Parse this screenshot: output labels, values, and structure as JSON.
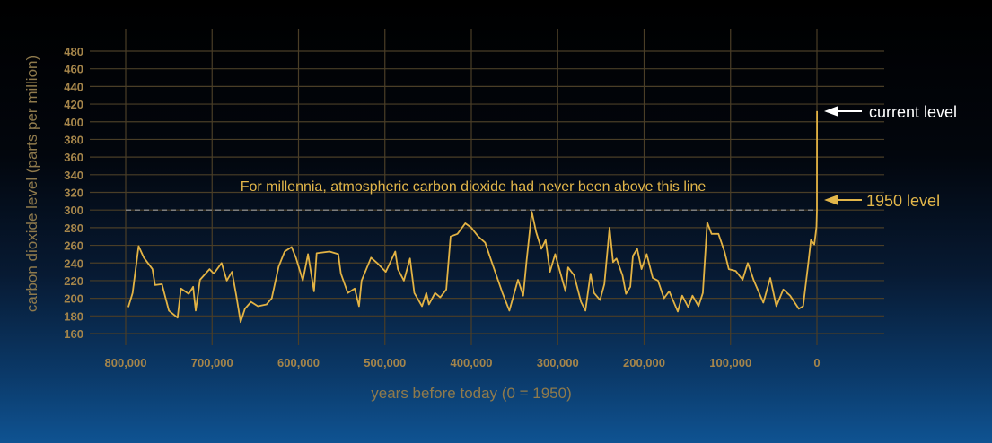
{
  "chart_data": {
    "type": "line",
    "title": "",
    "xlabel": "years before today (0 = 1950)",
    "ylabel": "carbon dioxide level (parts per million)",
    "xlim": [
      800000,
      0
    ],
    "ylim": [
      160,
      480
    ],
    "x_ticks": [
      800000,
      700000,
      600000,
      500000,
      400000,
      300000,
      200000,
      100000,
      0
    ],
    "x_tick_labels": [
      "800,000",
      "700,000",
      "600,000",
      "500,000",
      "400,000",
      "300,000",
      "200,000",
      "100,000",
      "0"
    ],
    "y_ticks": [
      160,
      180,
      200,
      220,
      240,
      260,
      280,
      300,
      320,
      340,
      360,
      380,
      400,
      420,
      440,
      460,
      480
    ],
    "y_tick_labels": [
      "160",
      "180",
      "200",
      "220",
      "240",
      "260",
      "280",
      "300",
      "320",
      "340",
      "360",
      "380",
      "400",
      "420",
      "440",
      "460",
      "480"
    ],
    "grid": true,
    "reference_line": {
      "value": 300,
      "label": "For millennia, atmospheric carbon dioxide had never been above this line"
    },
    "annotations": {
      "current": "current level",
      "level_1950": "1950 level"
    },
    "colors": {
      "line": "#e3b344",
      "grid": "#4a3e27",
      "reference": "#9a9a9a",
      "current_arrow": "#ffffff",
      "level_arrow": "#e2b64a"
    },
    "series": [
      {
        "x": [
          797000,
          792000,
          785000,
          779000,
          769000,
          766000,
          758000,
          750000,
          740000,
          736000,
          727000,
          722000,
          719000,
          714000,
          703000,
          698000,
          689000,
          683000,
          677000,
          672000,
          667000,
          662000,
          655000,
          647000,
          637000,
          631000,
          623000,
          616000,
          608000,
          603000,
          595000,
          589000,
          582000,
          579000,
          564000,
          554000,
          551000,
          543000,
          535000,
          530000,
          527000,
          516000,
          509000,
          499000,
          488000,
          485000,
          478000,
          471000,
          466000,
          457000,
          452000,
          449000,
          442000,
          436000,
          429000,
          424000,
          416000,
          407000,
          400000,
          392000,
          384000,
          377000,
          371000,
          364000,
          356000,
          346000,
          340000,
          336000,
          330000,
          325000,
          319000,
          314000,
          309000,
          303000,
          291000,
          288000,
          281000,
          273000,
          268000,
          262000,
          258000,
          251000,
          246000,
          240000,
          236000,
          232000,
          225000,
          221000,
          216000,
          213000,
          208000,
          203000,
          197000,
          190000,
          184000,
          177000,
          171000,
          161000,
          156000,
          149000,
          144000,
          137000,
          132000,
          127000,
          122000,
          114000,
          107000,
          102000,
          94000,
          86000,
          80000,
          73000,
          62000,
          54000,
          47000,
          39000,
          31000,
          21000,
          16000,
          10000,
          7000,
          3000,
          500,
          0,
          -70
        ],
        "y": [
          190,
          206,
          259,
          246,
          233,
          215,
          216,
          186,
          178,
          211,
          205,
          213,
          186,
          221,
          233,
          228,
          240,
          220,
          230,
          203,
          173,
          188,
          196,
          191,
          193,
          200,
          236,
          253,
          258,
          246,
          220,
          250,
          208,
          251,
          253,
          250,
          228,
          206,
          211,
          191,
          220,
          246,
          240,
          230,
          253,
          233,
          220,
          245,
          206,
          191,
          206,
          193,
          206,
          201,
          210,
          270,
          273,
          285,
          280,
          270,
          263,
          243,
          226,
          206,
          186,
          221,
          203,
          243,
          298,
          275,
          256,
          266,
          230,
          250,
          208,
          235,
          226,
          196,
          186,
          228,
          206,
          198,
          216,
          280,
          241,
          245,
          226,
          205,
          213,
          248,
          256,
          233,
          250,
          223,
          220,
          200,
          208,
          185,
          203,
          190,
          203,
          191,
          206,
          286,
          273,
          273,
          253,
          233,
          231,
          221,
          240,
          220,
          195,
          223,
          191,
          210,
          203,
          188,
          191,
          240,
          266,
          261,
          281,
          300,
          412
        ]
      }
    ]
  }
}
